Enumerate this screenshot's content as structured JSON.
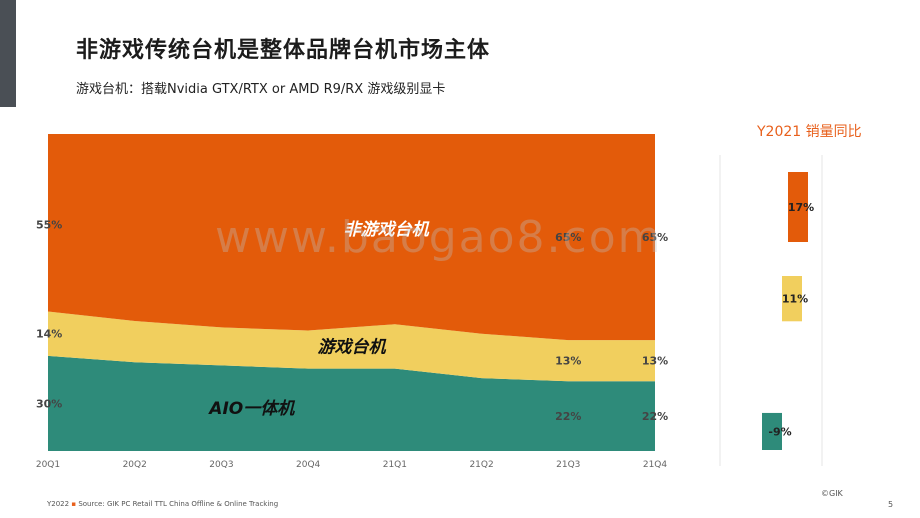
{
  "slide": {
    "title": "非游戏传统台机是整体品牌台机市场主体",
    "subtitle": "游戏台机：搭载Nvidia GTX/RTX or AMD R9/RX 游戏级别显卡",
    "watermark": "www.baogao8.com",
    "footer_year": "Y2022",
    "footer_bullet": "▪",
    "footer_source": "Source: GIK PC Retail TTL China Offline & Online Tracking",
    "copyright": "©GIK",
    "page_number": "5"
  },
  "colors": {
    "non_gaming": "#E35B0A",
    "gaming": "#F1CF5E",
    "aio": "#2E8B7A",
    "accent": "#E8601C"
  },
  "chart_data": [
    {
      "type": "area",
      "stacked": true,
      "percent": true,
      "x": [
        "20Q1",
        "20Q2",
        "20Q3",
        "20Q4",
        "21Q1",
        "21Q2",
        "21Q3",
        "21Q4"
      ],
      "series": [
        {
          "name": "AIO一体机",
          "key": "aio",
          "values": [
            30,
            28,
            27,
            26,
            26,
            23,
            22,
            22
          ]
        },
        {
          "name": "游戏台机",
          "key": "gaming",
          "values": [
            14,
            13,
            12,
            12,
            14,
            14,
            13,
            13
          ]
        },
        {
          "name": "非游戏台机",
          "key": "non_gaming",
          "values": [
            55,
            59,
            61,
            62,
            60,
            63,
            65,
            65
          ]
        }
      ],
      "ylim": [
        0,
        100
      ],
      "data_labels": [
        {
          "series": "non_gaming",
          "x": "20Q1",
          "text": "55%"
        },
        {
          "series": "non_gaming",
          "x": "21Q3",
          "text": "65%"
        },
        {
          "series": "non_gaming",
          "x": "21Q4",
          "text": "65%"
        },
        {
          "series": "gaming",
          "x": "20Q1",
          "text": "14%"
        },
        {
          "series": "gaming",
          "x": "21Q3",
          "text": "13%"
        },
        {
          "series": "gaming",
          "x": "21Q4",
          "text": "13%"
        },
        {
          "series": "aio",
          "x": "20Q1",
          "text": "30%"
        },
        {
          "series": "aio",
          "x": "21Q3",
          "text": "22%"
        },
        {
          "series": "aio",
          "x": "21Q4",
          "text": "22%"
        }
      ],
      "series_labels": [
        {
          "series": "non_gaming",
          "text": "非游戏台机"
        },
        {
          "series": "gaming",
          "text": "游戏台机"
        },
        {
          "series": "aio",
          "text": "AIO一体机"
        }
      ]
    },
    {
      "type": "bar",
      "title": "Y2021 销量同比",
      "categories": [
        "非游戏台机",
        "游戏台机",
        "AIO一体机"
      ],
      "values": [
        17,
        11,
        -9
      ],
      "labels": [
        "17%",
        "11%",
        "-9%"
      ]
    }
  ]
}
